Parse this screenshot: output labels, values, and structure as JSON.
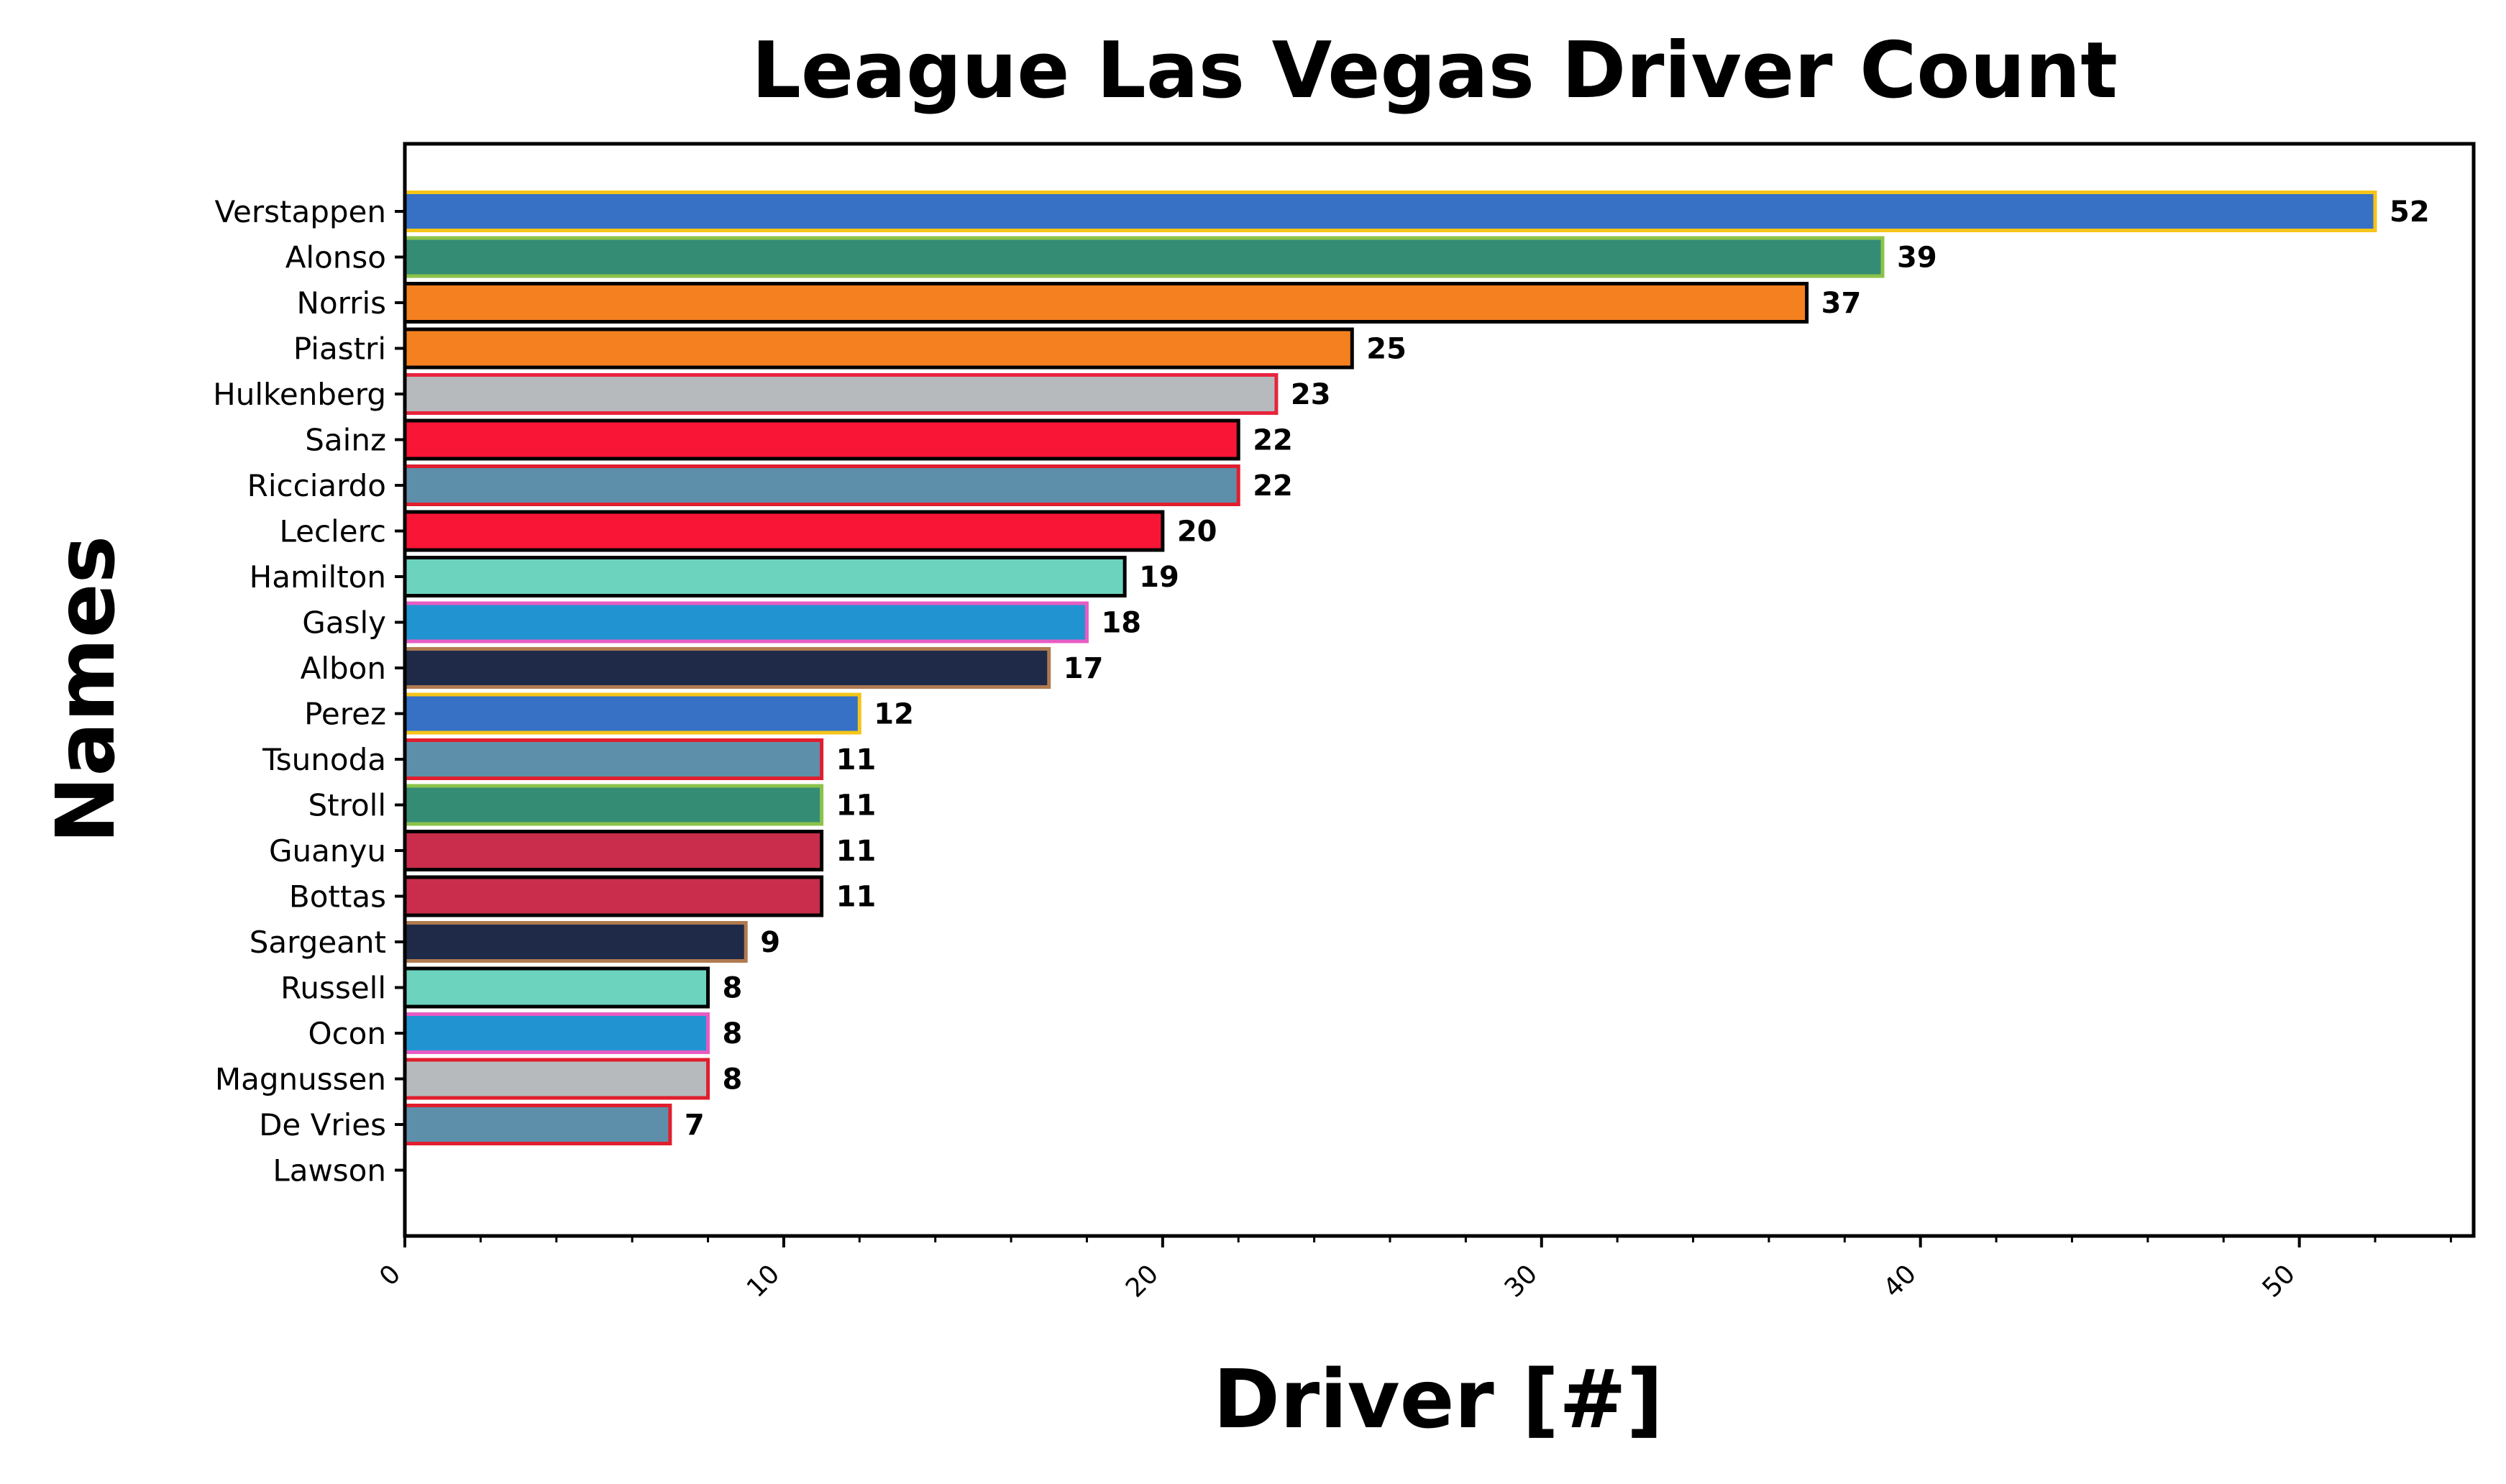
{
  "chart_data": {
    "type": "bar",
    "orientation": "horizontal",
    "title": "League Las Vegas Driver Count",
    "xlabel": "Driver [#]",
    "ylabel": "Names",
    "xlim": [
      0,
      54.6
    ],
    "xticks": [
      0,
      10,
      20,
      30,
      40,
      50
    ],
    "grid": false,
    "categories": [
      "Verstappen",
      "Alonso",
      "Norris",
      "Piastri",
      "Hulkenberg",
      "Sainz",
      "Ricciardo",
      "Leclerc",
      "Hamilton",
      "Gasly",
      "Albon",
      "Perez",
      "Tsunoda",
      "Stroll",
      "Guanyu",
      "Bottas",
      "Sargeant",
      "Russell",
      "Ocon",
      "Magnussen",
      "De Vries",
      "Lawson"
    ],
    "values": [
      52,
      39,
      37,
      25,
      23,
      22,
      22,
      20,
      19,
      18,
      17,
      12,
      11,
      11,
      11,
      11,
      9,
      8,
      8,
      8,
      7,
      0
    ],
    "data_labels": [
      "52",
      "39",
      "37",
      "25",
      "23",
      "22",
      "22",
      "20",
      "19",
      "18",
      "17",
      "12",
      "11",
      "11",
      "11",
      "11",
      "9",
      "8",
      "8",
      "8",
      "7",
      ""
    ],
    "fill_colors": [
      "#3671C6",
      "#358C75",
      "#F58020",
      "#F58020",
      "#B6BABD",
      "#F91536",
      "#5E8FAA",
      "#F91536",
      "#6CD3BF",
      "#2293D1",
      "#1E2A48",
      "#3671C6",
      "#5E8FAA",
      "#358C75",
      "#C92D4B",
      "#C92D4B",
      "#1E2A48",
      "#6CD3BF",
      "#2293D1",
      "#B6BABD",
      "#5E8FAA",
      "#FFFFFF"
    ],
    "edge_colors": [
      "#F5C518",
      "#8BC34A",
      "#000000",
      "#000000",
      "#E8243E",
      "#000000",
      "#E01E2E",
      "#000000",
      "#000000",
      "#E85CC4",
      "#B07A50",
      "#F5C518",
      "#E01E2E",
      "#8BC34A",
      "#000000",
      "#000000",
      "#B07A50",
      "#000000",
      "#E85CC4",
      "#E01E2E",
      "#E01E2E",
      "#FFFFFF"
    ]
  }
}
